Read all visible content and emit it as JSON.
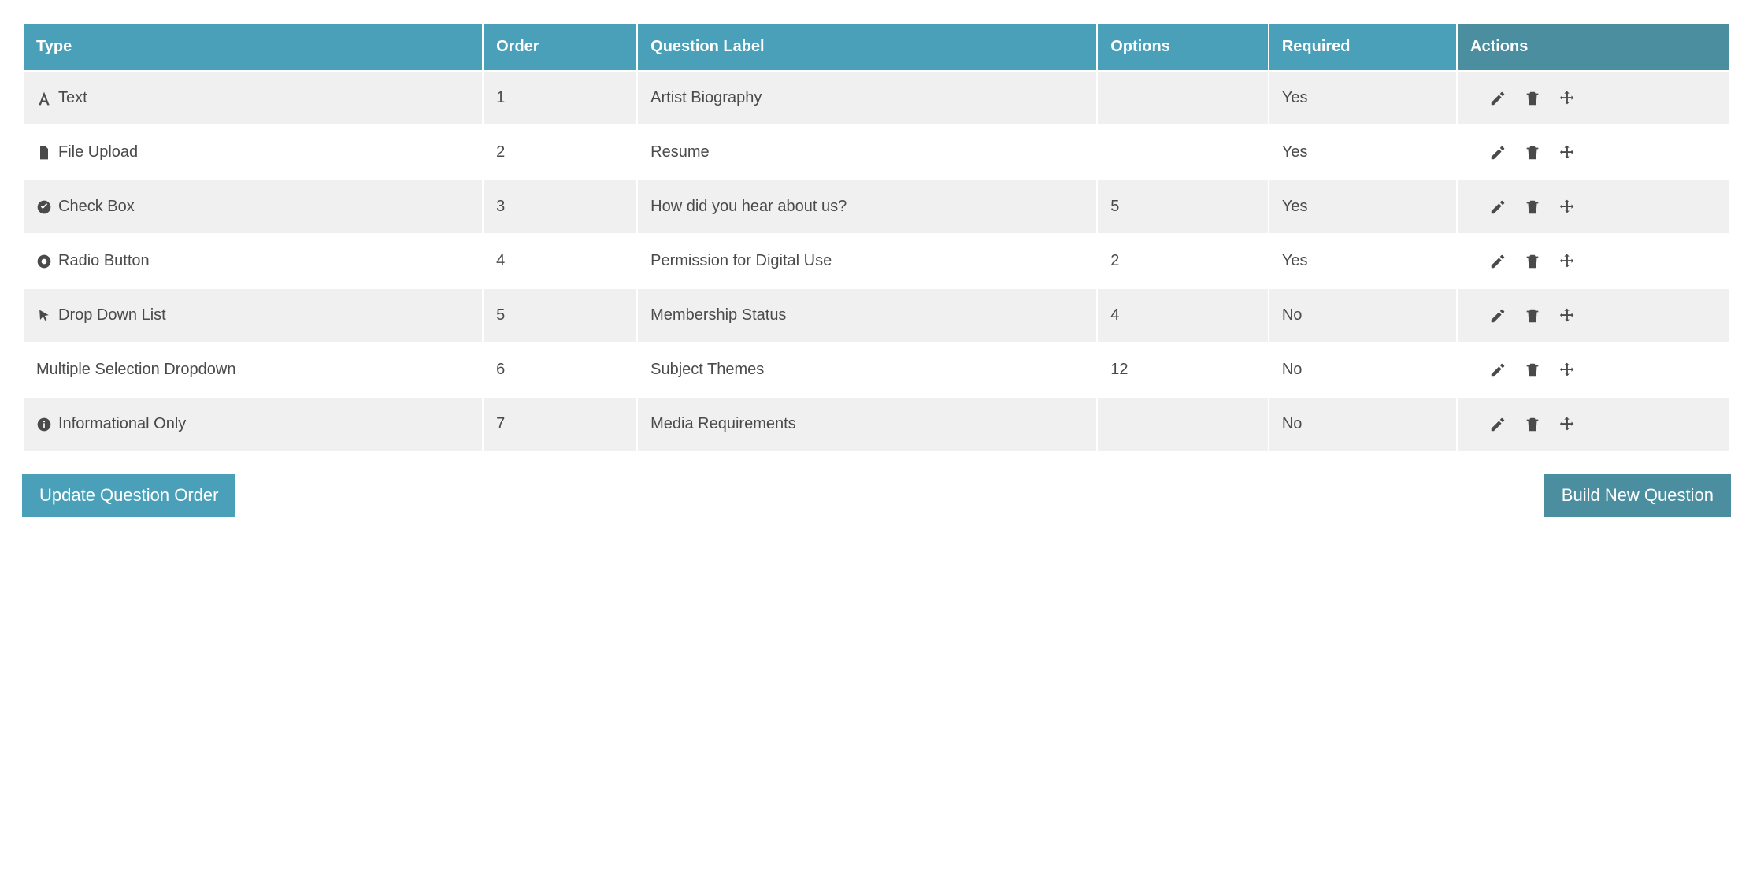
{
  "colors": {
    "header_bg": "#49a0b8",
    "actions_header_bg": "#4a8ea0",
    "header_text": "#ffffff",
    "row_odd_bg": "#f0f0f0",
    "row_even_bg": "#ffffff",
    "body_text": "#4a4a4a",
    "btn_primary_bg": "#49a0b8",
    "btn_secondary_bg": "#4a8ea0",
    "icon_color": "#4a4a4a"
  },
  "typography": {
    "body_fontsize": 20,
    "header_fontsize": 20,
    "button_fontsize": 22
  },
  "columns": [
    {
      "key": "type",
      "label": "Type",
      "width_pct": 27
    },
    {
      "key": "order",
      "label": "Order",
      "width_pct": 9
    },
    {
      "key": "label",
      "label": "Question Label",
      "width_pct": 27
    },
    {
      "key": "options",
      "label": "Options",
      "width_pct": 10
    },
    {
      "key": "required",
      "label": "Required",
      "width_pct": 11
    },
    {
      "key": "actions",
      "label": "Actions",
      "width_pct": 16
    }
  ],
  "rows": [
    {
      "icon": "font",
      "type": "Text",
      "order": "1",
      "label": "Artist Biography",
      "options": "",
      "required": "Yes"
    },
    {
      "icon": "file",
      "type": "File Upload",
      "order": "2",
      "label": "Resume",
      "options": "",
      "required": "Yes"
    },
    {
      "icon": "check-circle",
      "type": "Check Box",
      "order": "3",
      "label": "How did you hear about us?",
      "options": "5",
      "required": "Yes"
    },
    {
      "icon": "dot-circle",
      "type": "Radio Button",
      "order": "4",
      "label": "Permission for Digital Use",
      "options": "2",
      "required": "Yes"
    },
    {
      "icon": "cursor",
      "type": "Drop Down List",
      "order": "5",
      "label": "Membership Status",
      "options": "4",
      "required": "No"
    },
    {
      "icon": "",
      "type": "Multiple Selection Dropdown",
      "order": "6",
      "label": "Subject Themes",
      "options": "12",
      "required": "No"
    },
    {
      "icon": "info-circle",
      "type": "Informational Only",
      "order": "7",
      "label": "Media Requirements",
      "options": "",
      "required": "No"
    }
  ],
  "action_icons": [
    "pencil",
    "trash",
    "move"
  ],
  "buttons": {
    "update": "Update Question Order",
    "build": "Build New Question"
  }
}
